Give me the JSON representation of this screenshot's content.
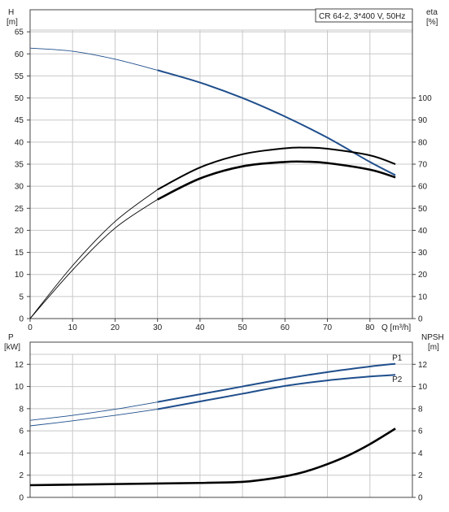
{
  "chart_data": [
    {
      "type": "line",
      "title": "CR 64-2, 3*400 V, 50Hz",
      "ylabel_left": "H",
      "ylabel_left_unit": "[m]",
      "ylabel_right": "eta",
      "ylabel_right_unit": "[%]",
      "xlabel": "Q [m³/h]",
      "xlim": [
        0,
        90
      ],
      "ylim_left": [
        0,
        70
      ],
      "ylim_right": [
        0,
        140
      ],
      "x_ticks": [
        "0",
        "10",
        "20",
        "30",
        "40",
        "50",
        "60",
        "70",
        "80"
      ],
      "y_left_ticks": [
        "0",
        "5",
        "10",
        "15",
        "20",
        "25",
        "30",
        "35",
        "40",
        "45",
        "50",
        "55",
        "60",
        "65"
      ],
      "y_right_ticks": [
        "0",
        "10",
        "20",
        "30",
        "40",
        "50",
        "60",
        "70",
        "80",
        "90",
        "100"
      ],
      "grid": true,
      "series": [
        {
          "axis": "left",
          "color": "#1f4e8c",
          "x": [
            0,
            10,
            20,
            30,
            40,
            50,
            60,
            70,
            80,
            86
          ],
          "y": [
            61.3,
            60.6,
            58.8,
            56.3,
            53.5,
            50.0,
            45.8,
            41.0,
            35.5,
            32.5
          ],
          "bold_from": 30
        },
        {
          "axis": "right",
          "color": "#000000",
          "x": [
            0,
            10,
            20,
            30,
            40,
            50,
            60,
            65,
            70,
            80,
            86
          ],
          "y": [
            0,
            24,
            44,
            58.5,
            68.5,
            74.5,
            77.2,
            77.5,
            77.0,
            74.0,
            70.0
          ],
          "bold_from": 30
        },
        {
          "axis": "right",
          "color": "#000000",
          "x": [
            0,
            10,
            20,
            30,
            40,
            50,
            60,
            65,
            70,
            80,
            86
          ],
          "y": [
            0,
            22,
            41,
            54,
            63.5,
            69,
            71,
            71.1,
            70.5,
            67.5,
            64
          ],
          "bold_from": 30,
          "bold": true
        }
      ]
    },
    {
      "type": "line",
      "ylabel_left": "P",
      "ylabel_left_unit": "[kW]",
      "ylabel_right": "NPSH",
      "ylabel_right_unit": "[m]",
      "xlim": [
        0,
        90
      ],
      "ylim_left": [
        0,
        14
      ],
      "ylim_right": [
        0,
        14
      ],
      "y_left_ticks": [
        "0",
        "2",
        "4",
        "6",
        "8",
        "10",
        "12"
      ],
      "y_right_ticks": [
        "0",
        "2",
        "4",
        "6",
        "8",
        "10",
        "12"
      ],
      "grid": true,
      "series": [
        {
          "name": "P1",
          "axis": "left",
          "color": "#1f4e8c",
          "x": [
            0,
            10,
            20,
            30,
            40,
            50,
            60,
            70,
            80,
            86
          ],
          "y": [
            6.95,
            7.4,
            7.95,
            8.6,
            9.3,
            10.0,
            10.7,
            11.3,
            11.8,
            12.05
          ],
          "bold_from": 30
        },
        {
          "name": "P2",
          "axis": "left",
          "color": "#1f4e8c",
          "x": [
            0,
            10,
            20,
            30,
            40,
            50,
            60,
            70,
            80,
            86
          ],
          "y": [
            6.45,
            6.9,
            7.4,
            7.95,
            8.65,
            9.35,
            10.05,
            10.55,
            10.9,
            11.05
          ],
          "bold_from": 30
        },
        {
          "axis": "right",
          "color": "#000000",
          "x": [
            0,
            10,
            20,
            30,
            40,
            50,
            55,
            60,
            65,
            70,
            75,
            80,
            86
          ],
          "y": [
            1.1,
            1.15,
            1.2,
            1.25,
            1.3,
            1.4,
            1.6,
            1.9,
            2.35,
            3.0,
            3.8,
            4.8,
            6.2
          ],
          "bold": true
        }
      ]
    }
  ]
}
